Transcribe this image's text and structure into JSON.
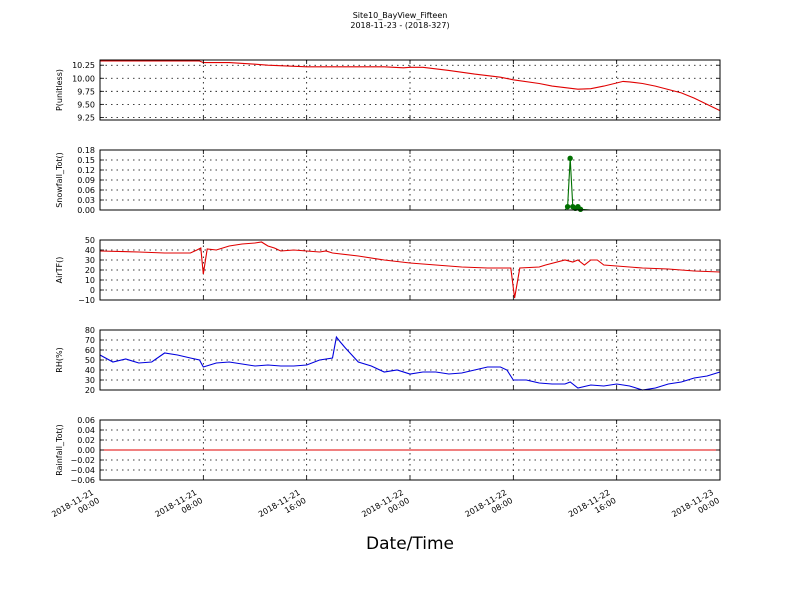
{
  "title": "Site10_BayView_Fifteen",
  "subtitle": "2018-11-23 - (2018-327)",
  "chart_data": {
    "type": "line",
    "xlabel": "Date/Time",
    "x_range": [
      "2018-11-21 00:00",
      "2018-11-23 00:00"
    ],
    "x_ticks": [
      [
        "2018-11-21",
        "00:00"
      ],
      [
        "2018-11-21",
        "08:00"
      ],
      [
        "2018-11-21",
        "16:00"
      ],
      [
        "2018-11-22",
        "00:00"
      ],
      [
        "2018-11-22",
        "08:00"
      ],
      [
        "2018-11-22",
        "16:00"
      ],
      [
        "2018-11-23",
        "00:00"
      ]
    ],
    "grid": true,
    "panels": [
      {
        "ylabel": "P(unitless)",
        "ylim": [
          9.2,
          10.35
        ],
        "yticks": [
          9.25,
          9.5,
          9.75,
          10.0,
          10.25
        ],
        "ytick_labels": [
          "9.25",
          "9.50",
          "9.75",
          "10.00",
          "10.25"
        ],
        "color": "#e00000",
        "markers": false,
        "series": {
          "x_hours": [
            0,
            4,
            7.7,
            8,
            10,
            12,
            13,
            16,
            22,
            23.5,
            24,
            25,
            27,
            29,
            31,
            32,
            34,
            35,
            37,
            38,
            39,
            40.5,
            41,
            42,
            43,
            45,
            46,
            48
          ],
          "values": [
            10.33,
            10.33,
            10.33,
            10.3,
            10.3,
            10.27,
            10.25,
            10.22,
            10.22,
            10.2,
            10.21,
            10.21,
            10.15,
            10.08,
            10.02,
            9.97,
            9.9,
            9.85,
            9.79,
            9.8,
            9.85,
            9.94,
            9.93,
            9.9,
            9.85,
            9.72,
            9.62,
            9.38
          ]
        }
      },
      {
        "ylabel": "Snowfall_Tot()",
        "ylim": [
          0,
          0.18
        ],
        "yticks": [
          0,
          0.03,
          0.06,
          0.09,
          0.12,
          0.15,
          0.18
        ],
        "ytick_labels": [
          "0.00",
          "0.03",
          "0.06",
          "0.09",
          "0.12",
          "0.15",
          "0.18"
        ],
        "color": "#007000",
        "markers": true,
        "series": {
          "x_hours": [
            0,
            5,
            10,
            15,
            20,
            25,
            30,
            35,
            36,
            36.2,
            36.4,
            36.6,
            36.8,
            37,
            37.2,
            38,
            40,
            45,
            48
          ],
          "values": [
            0,
            0,
            0,
            0,
            0,
            0,
            0,
            0,
            0,
            0.01,
            0.155,
            0.01,
            0.005,
            0.01,
            0.002,
            0,
            0,
            0,
            0
          ]
        }
      },
      {
        "ylabel": "AirTF()",
        "ylim": [
          -10,
          50
        ],
        "yticks": [
          -10,
          0,
          10,
          20,
          30,
          40,
          50
        ],
        "ytick_labels": [
          "−10",
          "0",
          "10",
          "20",
          "30",
          "40",
          "50"
        ],
        "color": "#e00000",
        "markers": false,
        "series": {
          "x_hours": [
            0,
            3,
            5,
            7,
            7.5,
            7.8,
            8,
            8.3,
            9,
            10,
            11,
            12,
            12.5,
            13,
            13.5,
            14,
            15,
            16,
            17,
            17.5,
            18,
            20,
            22,
            24,
            26,
            28,
            30,
            31.5,
            31.8,
            32.1,
            32.5,
            34,
            34.5,
            36,
            36.6,
            37,
            37.5,
            38,
            38.5,
            39,
            40,
            42,
            44,
            46,
            48
          ],
          "values": [
            39,
            38,
            37,
            37,
            40,
            42,
            16,
            41,
            40,
            44,
            46,
            47,
            48,
            44,
            42,
            39,
            40,
            39,
            38,
            39,
            37,
            34,
            30,
            27,
            25,
            23,
            22,
            22,
            22,
            -8,
            22,
            23,
            25,
            30,
            28,
            30,
            25,
            30,
            30,
            25,
            24,
            22,
            21,
            19,
            18
          ]
        }
      },
      {
        "ylabel": "RH(%)",
        "ylim": [
          20,
          80
        ],
        "yticks": [
          20,
          30,
          40,
          50,
          60,
          70,
          80
        ],
        "ytick_labels": [
          "20",
          "30",
          "40",
          "50",
          "60",
          "70",
          "80"
        ],
        "color": "#0000dd",
        "markers": false,
        "series": {
          "x_hours": [
            0,
            1,
            2,
            3,
            4,
            5,
            6,
            7,
            7.7,
            8,
            9,
            10,
            11,
            12,
            13,
            14,
            15,
            16,
            17,
            18,
            18.3,
            18.6,
            19,
            20,
            21,
            22,
            23,
            24,
            25,
            26,
            27,
            28,
            29,
            30,
            31,
            31.5,
            32,
            33,
            34,
            35,
            36,
            36.4,
            37,
            38,
            39,
            40,
            41,
            42,
            43,
            44,
            45,
            46,
            47,
            48
          ],
          "values": [
            55,
            48,
            51,
            47,
            48,
            57,
            55,
            52,
            50,
            43,
            47,
            48,
            46,
            44,
            45,
            44,
            44,
            45,
            50,
            52,
            73,
            68,
            62,
            48,
            44,
            38,
            40,
            36,
            38,
            38,
            36,
            37,
            40,
            43,
            43,
            40,
            30,
            30,
            27,
            26,
            26,
            28,
            22,
            25,
            24,
            26,
            24,
            20,
            22,
            26,
            28,
            32,
            34,
            38
          ]
        }
      },
      {
        "ylabel": "Rainfall_Tot()",
        "ylim": [
          -0.06,
          0.06
        ],
        "yticks": [
          -0.06,
          -0.04,
          -0.02,
          0.0,
          0.02,
          0.04,
          0.06
        ],
        "ytick_labels": [
          "−0.06",
          "−0.04",
          "−0.02",
          "0.00",
          "0.02",
          "0.04",
          "0.06"
        ],
        "color": "#e00000",
        "markers": false,
        "series": {
          "x_hours": [
            0,
            48
          ],
          "values": [
            0,
            0
          ]
        }
      }
    ]
  }
}
